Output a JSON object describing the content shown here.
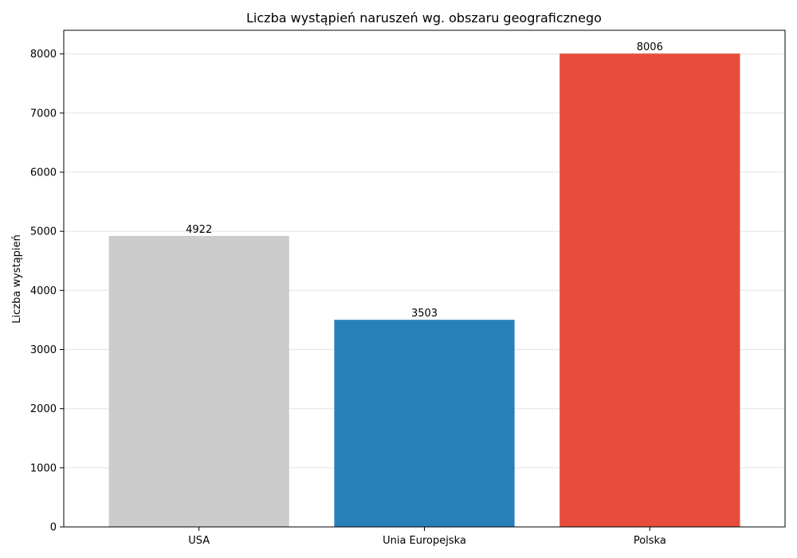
{
  "chart_data": {
    "type": "bar",
    "title": "Liczba wystąpień naruszeń wg. obszaru geograficznego",
    "xlabel": "",
    "ylabel": "Liczba wystąpień",
    "categories": [
      "USA",
      "Unia Europejska",
      "Polska"
    ],
    "values": [
      4922,
      3503,
      8006
    ],
    "data_labels": [
      "4922",
      "3503",
      "8006"
    ],
    "colors": [
      "#cccccc",
      "#2980b9",
      "#e74c3c"
    ],
    "ylim": [
      0,
      8400
    ],
    "yticks": [
      0,
      1000,
      2000,
      3000,
      4000,
      5000,
      6000,
      7000,
      8000
    ],
    "ytick_labels": [
      "0",
      "1000",
      "2000",
      "3000",
      "4000",
      "5000",
      "6000",
      "7000",
      "8000"
    ],
    "grid": "horizontal",
    "legend": "none"
  }
}
